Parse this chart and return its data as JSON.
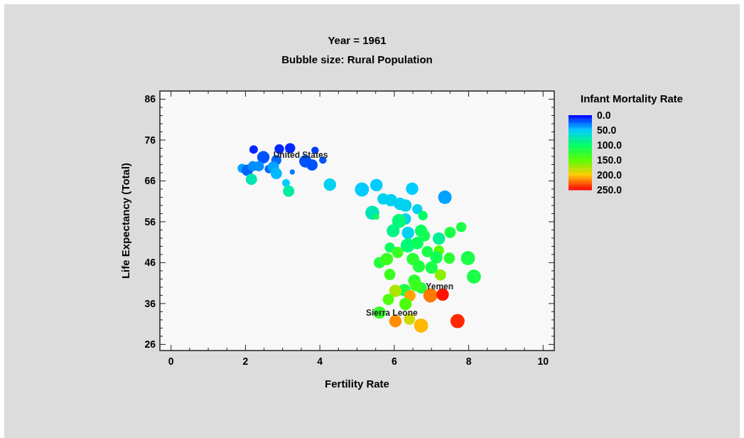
{
  "chart_data": {
    "type": "bubble",
    "title": "Year = 1961",
    "subtitle": "Bubble size: Rural Population",
    "xlabel": "Fertility Rate",
    "ylabel": "Life Expectancy (Total)",
    "clabel": "Infant Mortality Rate",
    "xlim": [
      -0.3,
      10.3
    ],
    "ylim": [
      24.5,
      88
    ],
    "xticks": [
      0,
      {
        "value": 0.5,
        "label": null
      },
      {
        "value": 1,
        "label": null
      },
      {
        "value": 1.5,
        "label": null
      },
      2,
      {
        "value": 2.5,
        "label": null
      },
      {
        "value": 3,
        "label": null
      },
      {
        "value": 3.5,
        "label": null
      },
      4,
      {
        "value": 4.5,
        "label": null
      },
      {
        "value": 5,
        "label": null
      },
      {
        "value": 5.5,
        "label": null
      },
      6,
      {
        "value": 6.5,
        "label": null
      },
      {
        "value": 7,
        "label": null
      },
      {
        "value": 7.5,
        "label": null
      },
      8,
      {
        "value": 8.5,
        "label": null
      },
      {
        "value": 9,
        "label": null
      },
      {
        "value": 9.5,
        "label": null
      },
      10
    ],
    "yticks": [
      26,
      {
        "value": 28,
        "label": null
      },
      {
        "value": 30,
        "label": null
      },
      {
        "value": 32,
        "label": null
      },
      {
        "value": 34,
        "label": null
      },
      36,
      {
        "value": 38,
        "label": null
      },
      {
        "value": 40,
        "label": null
      },
      {
        "value": 42,
        "label": null
      },
      {
        "value": 44,
        "label": null
      },
      46,
      {
        "value": 48,
        "label": null
      },
      {
        "value": 50,
        "label": null
      },
      {
        "value": 52,
        "label": null
      },
      {
        "value": 54,
        "label": null
      },
      56,
      {
        "value": 58,
        "label": null
      },
      {
        "value": 60,
        "label": null
      },
      {
        "value": 62,
        "label": null
      },
      {
        "value": 64,
        "label": null
      },
      66,
      {
        "value": 68,
        "label": null
      },
      {
        "value": 70,
        "label": null
      },
      {
        "value": 72,
        "label": null
      },
      {
        "value": 74,
        "label": null
      },
      76,
      {
        "value": 78,
        "label": null
      },
      {
        "value": 80,
        "label": null
      },
      {
        "value": 82,
        "label": null
      },
      {
        "value": 84,
        "label": null
      },
      86
    ],
    "clim": [
      0,
      250
    ],
    "cticks": [
      {
        "value": 0,
        "label": "0.0"
      },
      {
        "value": 50,
        "label": "50.0"
      },
      {
        "value": 100,
        "label": "100.0"
      },
      {
        "value": 150,
        "label": "150.0"
      },
      {
        "value": 200,
        "label": "200.0"
      },
      {
        "value": 250,
        "label": "250.0"
      }
    ],
    "grid": false,
    "annotations": [
      {
        "text": "United States",
        "x": 2.75,
        "y": 72.3
      },
      {
        "text": "Yemen",
        "x": 6.85,
        "y": 40.2
      },
      "Sierra Leone"
    ],
    "series": [
      {
        "x": [
          2.22,
          2.91,
          3.2,
          3.87,
          2.48,
          2.83,
          3.61,
          3.79,
          4.08,
          2.63,
          1.91,
          2.05,
          2.2,
          2.36,
          2.75,
          2.83,
          3.26,
          2.16,
          3.09,
          3.16,
          4.27,
          5.13,
          5.52,
          6.48,
          7.36,
          5.7,
          5.91,
          6.15,
          6.3,
          6.62,
          6.77,
          5.41,
          5.52,
          6.3,
          6.13,
          5.97,
          6.37,
          6.72,
          6.81,
          7.2,
          7.5,
          7.8,
          5.88,
          6.36,
          6.62,
          6.09,
          6.89,
          7.2,
          7.13,
          7.48,
          7.98,
          5.6,
          5.8,
          6.5,
          6.66,
          7.0,
          5.88,
          7.24,
          8.14,
          6.54,
          6.73,
          6.27,
          6.58,
          6.03,
          6.42,
          6.97,
          7.3,
          5.84,
          6.3,
          5.6,
          6.03,
          6.41,
          6.72,
          7.7
        ],
        "values": [
          73.7,
          73.8,
          74.0,
          73.5,
          71.8,
          71.1,
          70.8,
          69.9,
          71.1,
          68.9,
          69.1,
          68.6,
          69.6,
          69.6,
          69.4,
          67.8,
          68.2,
          66.4,
          65.5,
          63.5,
          65.1,
          63.9,
          65.0,
          64.1,
          62.0,
          61.6,
          61.3,
          60.4,
          60.0,
          59.1,
          57.5,
          58.2,
          57.2,
          56.7,
          56.2,
          53.8,
          53.3,
          53.8,
          52.6,
          51.9,
          53.4,
          54.7,
          49.7,
          50.2,
          50.8,
          48.5,
          48.7,
          49.0,
          47.3,
          47.1,
          47.1,
          46.0,
          46.9,
          46.9,
          45.1,
          44.8,
          43.1,
          43.0,
          42.6,
          41.6,
          39.8,
          39.3,
          40.5,
          39.1,
          37.9,
          38.0,
          38.2,
          37.0,
          35.9,
          33.8,
          31.7,
          32.2,
          30.6,
          31.7
        ],
        "sizes": [
          0.36,
          0.46,
          0.52,
          0.27,
          0.77,
          0.52,
          0.77,
          0.64,
          0.27,
          0.36,
          0.41,
          0.64,
          0.52,
          0.52,
          0.64,
          0.64,
          0.13,
          0.64,
          0.31,
          0.64,
          0.77,
          1,
          0.77,
          0.77,
          0.92,
          0.64,
          0.77,
          0.77,
          0.77,
          0.52,
          0.46,
          1,
          0.16,
          0.64,
          1,
          0.85,
          0.77,
          0.77,
          0.64,
          0.77,
          0.64,
          0.52,
          0.52,
          1,
          0.77,
          0.64,
          0.64,
          0.52,
          0.77,
          0.64,
          1,
          0.64,
          0.77,
          0.77,
          0.77,
          0.77,
          0.64,
          0.64,
          1,
          0.77,
          0.64,
          0.77,
          0.77,
          0.77,
          0.64,
          1,
          0.77,
          0.64,
          0.77,
          0.77,
          0.77,
          0.64,
          1,
          1
        ],
        "cvalues": [
          10,
          10,
          10,
          15,
          20,
          25,
          20,
          20,
          20,
          25,
          40,
          25,
          35,
          35,
          40,
          45,
          30,
          75,
          50,
          80,
          55,
          50,
          50,
          50,
          40,
          55,
          55,
          55,
          55,
          55,
          100,
          75,
          110,
          55,
          95,
          90,
          55,
          105,
          110,
          85,
          115,
          115,
          105,
          95,
          105,
          135,
          115,
          150,
          110,
          125,
          115,
          120,
          135,
          125,
          120,
          115,
          135,
          165,
          115,
          125,
          120,
          115,
          135,
          175,
          210,
          220,
          245,
          145,
          145,
          130,
          215,
          185,
          205,
          240
        ]
      }
    ]
  }
}
